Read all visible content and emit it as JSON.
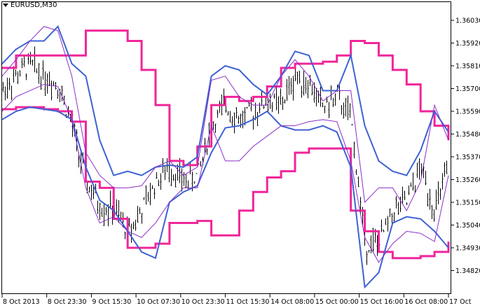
{
  "window": {
    "title": "EURUSD,M30"
  },
  "chart_data": {
    "type": "line",
    "symbol": "EURUSD",
    "timeframe": "M30",
    "ylim": [
      1.3475,
      1.3611
    ],
    "y_ticks": [
      "1.36030",
      "1.35920",
      "1.35810",
      "1.35700",
      "1.35590",
      "1.35480",
      "1.35370",
      "1.35260",
      "1.35150",
      "1.35040",
      "1.34930",
      "1.34820"
    ],
    "x_ticks": [
      "8 Oct 2013",
      "8 Oct 23:30",
      "9 Oct 15:30",
      "10 Oct 07:30",
      "10 Oct 23:30",
      "11 Oct 15:30",
      "14 Oct 08:00",
      "15 Oct 00:00",
      "15 Oct 16:00",
      "16 Oct 08:00",
      "17 Oct"
    ],
    "grid": false,
    "colors": {
      "price_bars": "#000000",
      "channel_outer": "#f0259a",
      "band_blue": "#3d62d4",
      "band_purple": "#8b2fc9",
      "background": "#ffffff"
    },
    "price_close": [
      1.3569,
      1.3576,
      1.3582,
      1.3576,
      1.3572,
      1.3552,
      1.3525,
      1.3513,
      1.3511,
      1.3501,
      1.3511,
      1.3525,
      1.3532,
      1.3525,
      1.3528,
      1.3552,
      1.3562,
      1.3555,
      1.3559,
      1.3564,
      1.3562,
      1.3576,
      1.3572,
      1.3561,
      1.3566,
      1.3555,
      1.3495,
      1.3495,
      1.3511,
      1.3515,
      1.3532,
      1.3511,
      1.3532
    ],
    "series": [
      {
        "style": "step",
        "color": "#f0259a",
        "width": 3,
        "values": [
          1.358,
          1.3586,
          1.3586,
          1.3586,
          1.3586,
          1.3586,
          1.3598,
          1.3598,
          1.3598,
          1.3593,
          1.3579,
          1.3562,
          1.3535,
          1.3533,
          1.3542,
          1.3562,
          1.3566,
          1.3564,
          1.3566,
          1.3571,
          1.358,
          1.3582,
          1.3582,
          1.3583,
          1.3586,
          1.3593,
          1.3592,
          1.3586,
          1.3579,
          1.3572,
          1.3559,
          1.3552,
          1.3545
        ]
      },
      {
        "style": "step",
        "color": "#f0259a",
        "width": 3,
        "values": [
          1.356,
          1.3561,
          1.3561,
          1.356,
          1.3559,
          1.3554,
          1.3525,
          1.3522,
          1.3507,
          1.3493,
          1.3493,
          1.3495,
          1.3505,
          1.3505,
          1.3506,
          1.3499,
          1.3499,
          1.3511,
          1.352,
          1.3527,
          1.353,
          1.3539,
          1.3541,
          1.3541,
          1.3541,
          1.3511,
          1.3501,
          1.3491,
          1.3488,
          1.3488,
          1.3489,
          1.3491,
          1.3496
        ]
      },
      {
        "style": "line",
        "color": "#3d62d4",
        "width": 2,
        "values": [
          1.3582,
          1.3589,
          1.3593,
          1.3593,
          1.36,
          1.3582,
          1.3576,
          1.3545,
          1.3528,
          1.353,
          1.3528,
          1.3532,
          1.3533,
          1.3532,
          1.3537,
          1.3576,
          1.3581,
          1.3579,
          1.3572,
          1.3567,
          1.3576,
          1.3588,
          1.3586,
          1.3569,
          1.3569,
          1.3586,
          1.3552,
          1.3535,
          1.353,
          1.3528,
          1.354,
          1.3559,
          1.3549
        ]
      },
      {
        "style": "line",
        "color": "#3d62d4",
        "width": 2,
        "values": [
          1.3555,
          1.3559,
          1.3561,
          1.356,
          1.3559,
          1.3555,
          1.3532,
          1.3516,
          1.3511,
          1.3501,
          1.3491,
          1.3488,
          1.3515,
          1.352,
          1.3523,
          1.3539,
          1.3551,
          1.3552,
          1.3555,
          1.3559,
          1.3552,
          1.355,
          1.355,
          1.3552,
          1.3549,
          1.3532,
          1.3474,
          1.3481,
          1.3505,
          1.3508,
          1.3507,
          1.3501,
          1.3493
        ]
      },
      {
        "style": "line",
        "color": "#8b2fc9",
        "width": 1,
        "values": [
          1.3576,
          1.3584,
          1.3593,
          1.36,
          1.3598,
          1.3576,
          1.3539,
          1.3528,
          1.3522,
          1.3522,
          1.3523,
          1.3532,
          1.3535,
          1.3528,
          1.3532,
          1.3574,
          1.3576,
          1.3566,
          1.3562,
          1.3562,
          1.3576,
          1.3584,
          1.3576,
          1.3564,
          1.3569,
          1.3569,
          1.3515,
          1.3522,
          1.3522,
          1.3511,
          1.3525,
          1.3562,
          1.3545
        ]
      },
      {
        "style": "line",
        "color": "#8b2fc9",
        "width": 1,
        "values": [
          1.3559,
          1.3566,
          1.3569,
          1.3572,
          1.3571,
          1.3555,
          1.3522,
          1.3505,
          1.3508,
          1.3501,
          1.3498,
          1.3505,
          1.3515,
          1.3522,
          1.3522,
          1.3552,
          1.3535,
          1.3535,
          1.3542,
          1.3547,
          1.3552,
          1.3552,
          1.3554,
          1.3555,
          1.3554,
          1.3535,
          1.3498,
          1.3486,
          1.3495,
          1.3501,
          1.35,
          1.3496,
          1.3528
        ]
      }
    ]
  }
}
